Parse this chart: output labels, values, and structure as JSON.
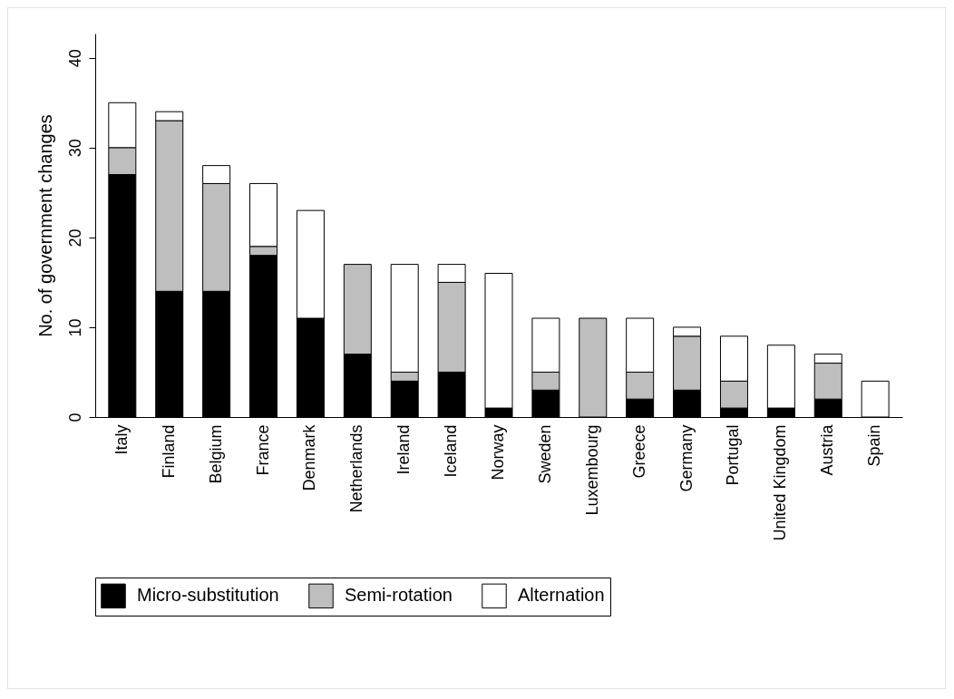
{
  "chart_data": {
    "type": "bar",
    "stacked": true,
    "ylabel": "No. of government changes",
    "categories": [
      "Italy",
      "Finland",
      "Belgium",
      "France",
      "Denmark",
      "Netherlands",
      "Ireland",
      "Iceland",
      "Norway",
      "Sweden",
      "Luxembourg",
      "Greece",
      "Germany",
      "Portugal",
      "United Kingdom",
      "Austria",
      "Spain"
    ],
    "series": [
      {
        "name": "Micro-substitution",
        "color": "#000000",
        "values": [
          27,
          14,
          14,
          18,
          11,
          7,
          4,
          5,
          1,
          3,
          0,
          2,
          3,
          1,
          1,
          2,
          0
        ]
      },
      {
        "name": "Semi-rotation",
        "color": "#bebebe",
        "values": [
          3,
          19,
          12,
          1,
          0,
          10,
          1,
          10,
          0,
          2,
          11,
          3,
          6,
          3,
          0,
          4,
          0
        ]
      },
      {
        "name": "Alternation",
        "color": "#ffffff",
        "values": [
          5,
          1,
          2,
          7,
          12,
          0,
          12,
          2,
          15,
          6,
          0,
          6,
          1,
          5,
          7,
          1,
          4
        ]
      }
    ],
    "ylim": [
      0,
      42.7
    ],
    "yticks": [
      0,
      10,
      20,
      30,
      40
    ],
    "grid": false,
    "legend": "bottom"
  }
}
